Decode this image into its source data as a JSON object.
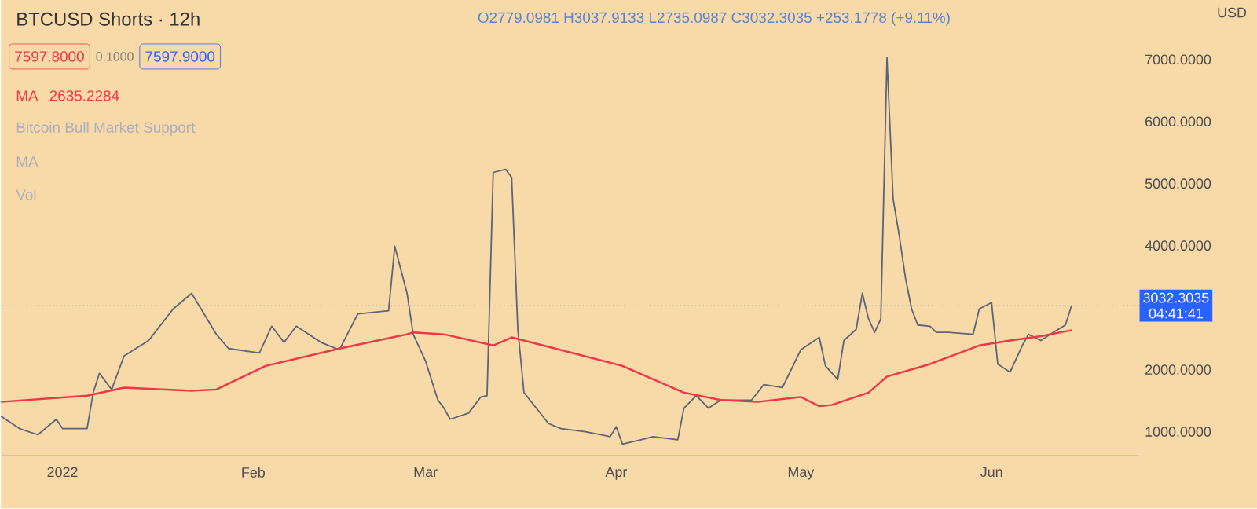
{
  "chart_data": {
    "type": "line",
    "title": "BTCUSD Shorts · 12h",
    "ylabel": "USD",
    "annotations": [
      "O2779.0981 H3037.9133 L2735.0987 C3032.3035 +253.1778 (+9.11%)",
      "7597.8000",
      "0.1000",
      "7597.9000",
      "2635.2284",
      "Bitcoin Bull Market Support",
      "MA",
      "Vol",
      "04:41:41"
    ],
    "xlim": [
      "2021-12-22",
      "2022-06-25"
    ],
    "xticks": [
      {
        "value": "2022-01-01",
        "label": "2022"
      },
      {
        "value": "2022-02-01",
        "label": "Feb"
      },
      {
        "value": "2022-03-01",
        "label": "Mar"
      },
      {
        "value": "2022-04-01",
        "label": "Apr"
      },
      {
        "value": "2022-05-01",
        "label": "May"
      },
      {
        "value": "2022-06-01",
        "label": "Jun"
      }
    ],
    "ylim": [
      620,
      7960
    ],
    "yticks": [
      {
        "value": 1000,
        "label": "1000.0000"
      },
      {
        "value": 2000,
        "label": "2000.0000"
      },
      {
        "value": 4000,
        "label": "4000.0000"
      },
      {
        "value": 5000,
        "label": "5000.0000"
      },
      {
        "value": 6000,
        "label": "6000.0000"
      },
      {
        "value": 7000,
        "label": "7000.0000"
      }
    ],
    "ref_lines": [
      {
        "axis": "y",
        "value": 3032.3035,
        "label": "3032.3035",
        "color": "#2962ff",
        "line_style": "dotted"
      }
    ],
    "legend": "top left",
    "series": [
      {
        "color": "#5b6478",
        "x": [
          "2021-12-22",
          "2021-12-25",
          "2021-12-28",
          "2021-12-31",
          "2022-01-01",
          "2022-01-05",
          "2022-01-06",
          "2022-01-07",
          "2022-01-09",
          "2022-01-11",
          "2022-01-15",
          "2022-01-19",
          "2022-01-22",
          "2022-01-24",
          "2022-01-26",
          "2022-01-28",
          "2022-02-02",
          "2022-02-04",
          "2022-02-06",
          "2022-02-08",
          "2022-02-12",
          "2022-02-15",
          "2022-02-18",
          "2022-02-23",
          "2022-02-24",
          "2022-02-26",
          "2022-02-27",
          "2022-03-01",
          "2022-03-03",
          "2022-03-04",
          "2022-03-05",
          "2022-03-08",
          "2022-03-10",
          "2022-03-11",
          "2022-03-12",
          "2022-03-14",
          "2022-03-15",
          "2022-03-16",
          "2022-03-17",
          "2022-03-19",
          "2022-03-21",
          "2022-03-23",
          "2022-03-27",
          "2022-03-31",
          "2022-04-01",
          "2022-04-02",
          "2022-04-05",
          "2022-04-07",
          "2022-04-11",
          "2022-04-12",
          "2022-04-14",
          "2022-04-16",
          "2022-04-18",
          "2022-04-23",
          "2022-04-25",
          "2022-04-28",
          "2022-05-01",
          "2022-05-04",
          "2022-05-05",
          "2022-05-07",
          "2022-05-08",
          "2022-05-10",
          "2022-05-11",
          "2022-05-12",
          "2022-05-13",
          "2022-05-14",
          "2022-05-15",
          "2022-05-16",
          "2022-05-17",
          "2022-05-18",
          "2022-05-19",
          "2022-05-20",
          "2022-05-22",
          "2022-05-23",
          "2022-05-25",
          "2022-05-29",
          "2022-05-30",
          "2022-06-01",
          "2022-06-02",
          "2022-06-04",
          "2022-06-06",
          "2022-06-07",
          "2022-06-09",
          "2022-06-11",
          "2022-06-13",
          "2022-06-14"
        ],
        "values": [
          1250,
          1050,
          950,
          1200,
          1050,
          1050,
          1630,
          1940,
          1680,
          2220,
          2470,
          2980,
          3230,
          2900,
          2570,
          2340,
          2270,
          2700,
          2440,
          2700,
          2440,
          2320,
          2900,
          2950,
          3990,
          3230,
          2570,
          2140,
          1510,
          1380,
          1200,
          1300,
          1560,
          1580,
          5180,
          5230,
          5100,
          2650,
          1630,
          1380,
          1130,
          1050,
          1000,
          920,
          1080,
          800,
          870,
          920,
          870,
          1380,
          1580,
          1380,
          1510,
          1510,
          1760,
          1710,
          2320,
          2520,
          2060,
          1840,
          2470,
          2650,
          3230,
          2820,
          2600,
          2820,
          7030,
          4750,
          4160,
          3480,
          2980,
          2720,
          2700,
          2600,
          2600,
          2570,
          2980,
          3080,
          2090,
          1960,
          2390,
          2570,
          2470,
          2600,
          2720,
          3032.3035
        ]
      },
      {
        "name": "MA",
        "color": "#f23645",
        "x": [
          "2021-12-22",
          "2022-01-05",
          "2022-01-11",
          "2022-01-22",
          "2022-01-26",
          "2022-02-03",
          "2022-02-15",
          "2022-02-26",
          "2022-02-27",
          "2022-03-04",
          "2022-03-12",
          "2022-03-15",
          "2022-04-02",
          "2022-04-12",
          "2022-04-18",
          "2022-04-24",
          "2022-05-01",
          "2022-05-04",
          "2022-05-06",
          "2022-05-12",
          "2022-05-15",
          "2022-05-22",
          "2022-05-30",
          "2022-06-04",
          "2022-06-09",
          "2022-06-14"
        ],
        "values": [
          1480,
          1580,
          1710,
          1660,
          1680,
          2060,
          2340,
          2570,
          2600,
          2570,
          2390,
          2520,
          2060,
          1630,
          1510,
          1480,
          1560,
          1410,
          1430,
          1630,
          1890,
          2090,
          2390,
          2470,
          2540,
          2635.2284
        ]
      }
    ]
  }
}
